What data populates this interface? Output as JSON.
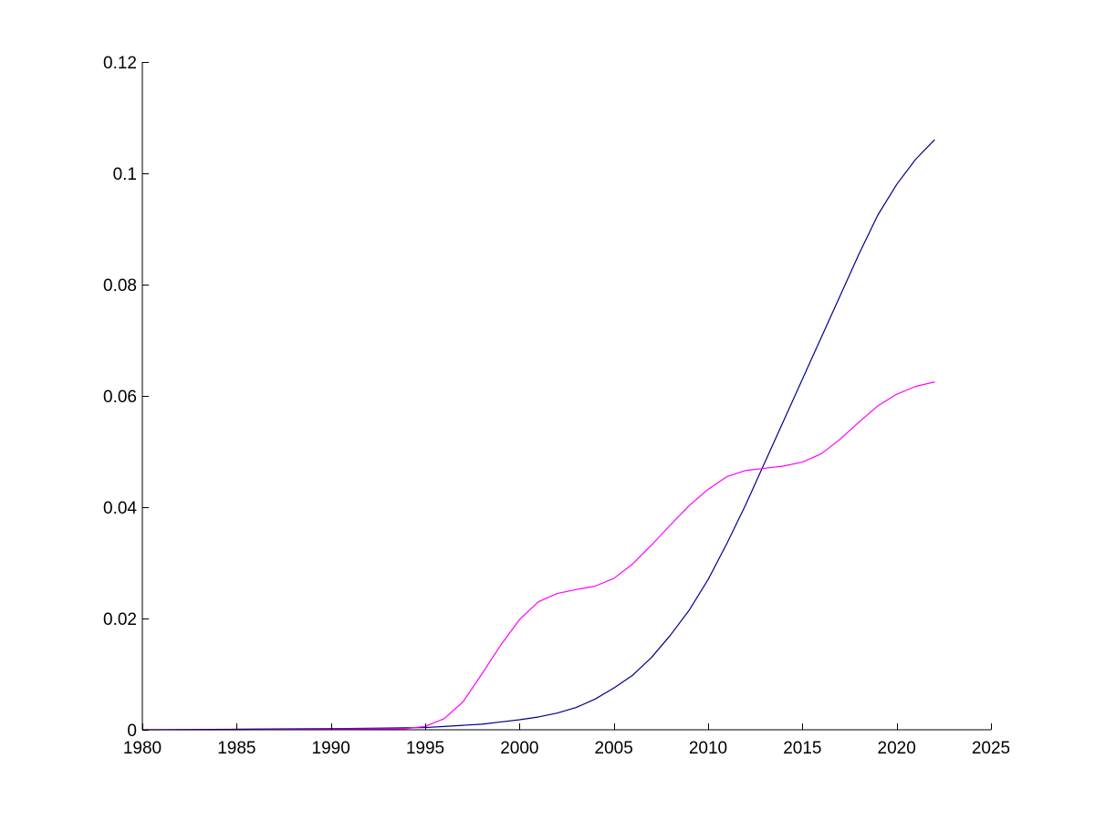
{
  "chart_data": {
    "type": "line",
    "title": "",
    "xlabel": "",
    "ylabel": "",
    "xlim": [
      1980,
      2025
    ],
    "ylim": [
      0,
      0.12
    ],
    "x_ticks": [
      1980,
      1985,
      1990,
      1995,
      2000,
      2005,
      2010,
      2015,
      2020,
      2025
    ],
    "x_tick_labels": [
      "1980",
      "1985",
      "1990",
      "1995",
      "2000",
      "2005",
      "2010",
      "2015",
      "2020",
      "2025"
    ],
    "y_ticks": [
      0,
      0.02,
      0.04,
      0.06,
      0.08,
      0.1,
      0.12
    ],
    "y_tick_labels": [
      "0",
      "0.02",
      "0.04",
      "0.06",
      "0.08",
      "0.1",
      "0.12"
    ],
    "grid": false,
    "legend": "none",
    "series": [
      {
        "color": "#00008b",
        "x": [
          1980,
          1985,
          1990,
          1995,
          1996,
          1997,
          1998,
          1999,
          2000,
          2001,
          2002,
          2003,
          2004,
          2005,
          2006,
          2007,
          2008,
          2009,
          2010,
          2011,
          2012,
          2013,
          2014,
          2015,
          2016,
          2017,
          2018,
          2019,
          2020,
          2021,
          2022
        ],
        "y": [
          0,
          0.0001,
          0.0002,
          0.0004,
          0.0006,
          0.0008,
          0.001,
          0.0014,
          0.0018,
          0.0023,
          0.003,
          0.004,
          0.0055,
          0.0075,
          0.0098,
          0.013,
          0.017,
          0.0215,
          0.027,
          0.0335,
          0.0405,
          0.048,
          0.0555,
          0.063,
          0.0705,
          0.078,
          0.0855,
          0.0925,
          0.098,
          0.1025,
          0.106
        ]
      },
      {
        "color": "#ff00ff",
        "x": [
          1980,
          1985,
          1990,
          1994,
          1995,
          1996,
          1997,
          1998,
          1999,
          2000,
          2001,
          2002,
          2003,
          2004,
          2005,
          2006,
          2007,
          2008,
          2009,
          2010,
          2011,
          2012,
          2013,
          2014,
          2015,
          2016,
          2017,
          2018,
          2019,
          2020,
          2021,
          2022
        ],
        "y": [
          0,
          0,
          0.0001,
          0.0002,
          0.0006,
          0.002,
          0.005,
          0.01,
          0.0152,
          0.0198,
          0.023,
          0.0245,
          0.0252,
          0.0258,
          0.0272,
          0.0298,
          0.0332,
          0.0368,
          0.0403,
          0.0432,
          0.0455,
          0.0466,
          0.047,
          0.0474,
          0.0481,
          0.0496,
          0.0522,
          0.0553,
          0.0582,
          0.0603,
          0.0617,
          0.0625
        ]
      }
    ]
  }
}
